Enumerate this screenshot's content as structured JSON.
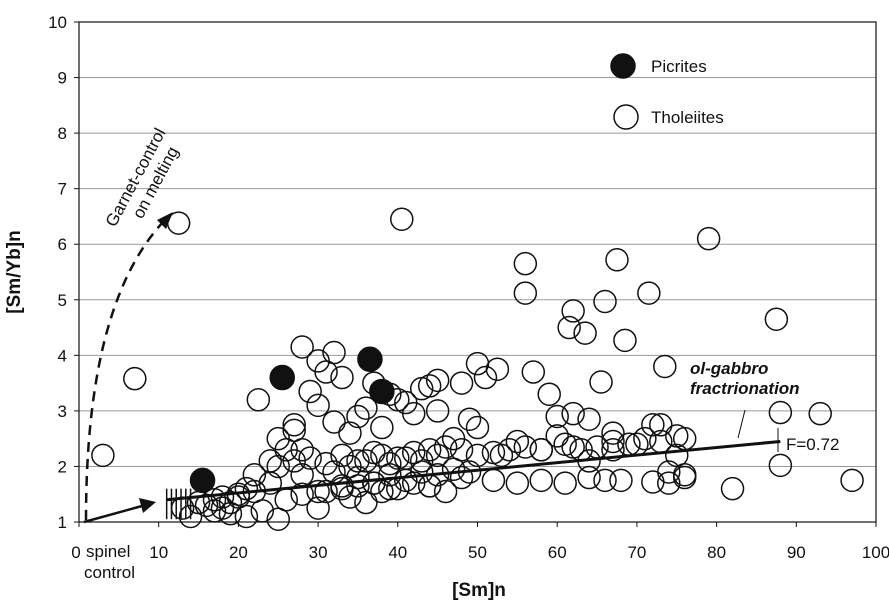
{
  "chart_data": {
    "type": "scatter",
    "xlabel": "[Sm]n",
    "ylabel": "[Sm/Yb]n",
    "xlim": [
      0,
      100
    ],
    "ylim": [
      1,
      10
    ],
    "x_ticks": [
      "0",
      "10",
      "20",
      "30",
      "40",
      "50",
      "60",
      "70",
      "80",
      "90",
      "100"
    ],
    "y_ticks": [
      "1",
      "2",
      "3",
      "4",
      "5",
      "6",
      "7",
      "8",
      "9",
      "10"
    ],
    "grid": "horizontal",
    "legend_placement": "top-right",
    "colors": {
      "picrites": "#111111",
      "tholeiites_fill": "#ffffff",
      "stroke": "#111111",
      "grid": "#999999"
    },
    "legend": [
      {
        "label": "Picrites",
        "symbol": "filled-circle"
      },
      {
        "label": "Tholeiites",
        "symbol": "open-circle"
      }
    ],
    "annotations": {
      "garnet": "Garnet-control on melting",
      "garnet_line1": "Garnet-control",
      "garnet_line2": "on melting",
      "spinel_line1": "spinel",
      "spinel_line2": "control",
      "fractionation_line1": "ol-gabbro",
      "fractionation_line2": "fractrionation",
      "f_label": "F=0.72"
    },
    "fractionation_line": {
      "x": [
        11,
        88
      ],
      "y": [
        1.4,
        2.45
      ]
    },
    "series": [
      {
        "name": "Picrites",
        "x": [
          15.5,
          25.5,
          36.5,
          38
        ],
        "y": [
          1.75,
          3.6,
          3.93,
          3.35
        ]
      },
      {
        "name": "Tholeiites",
        "x": [
          3,
          7,
          12.5,
          40.5,
          56,
          56,
          67.5,
          71.5,
          79,
          87.5,
          63.5,
          66,
          61.5,
          62,
          68.5,
          73.5,
          65.5,
          50,
          52.5,
          48,
          28,
          30,
          32,
          22.5,
          27,
          30,
          25,
          28,
          32,
          34,
          36,
          35,
          38,
          40,
          42,
          44,
          45,
          47,
          49,
          50,
          53,
          55,
          58,
          60,
          62,
          64,
          67,
          70,
          72,
          75,
          76,
          88,
          93,
          97,
          59,
          57,
          51,
          45,
          43,
          41,
          39,
          37,
          33,
          31,
          29,
          27,
          26,
          24,
          22,
          21,
          20,
          19,
          18,
          17,
          16,
          14,
          13,
          24,
          28,
          32,
          34,
          36,
          38,
          40,
          42,
          44,
          46,
          48,
          50,
          52,
          54,
          56,
          58,
          61,
          63,
          65,
          67,
          69,
          71,
          73,
          75,
          30,
          33,
          35,
          37,
          39,
          41,
          43,
          45,
          47,
          49,
          26,
          28,
          31,
          33,
          35,
          37,
          39,
          42,
          44,
          46,
          48,
          52,
          55,
          58,
          61,
          64,
          66,
          68,
          72,
          74,
          76,
          82,
          88,
          25,
          27,
          29,
          31,
          33,
          35,
          37,
          39,
          41,
          43,
          45,
          15,
          18,
          20,
          22,
          23,
          21,
          19,
          17,
          25,
          30,
          34,
          36,
          38,
          40,
          44,
          60,
          62,
          64,
          67,
          73,
          74,
          76
        ],
        "y": [
          2.2,
          3.58,
          6.38,
          6.45,
          5.65,
          5.12,
          5.72,
          5.12,
          6.1,
          4.65,
          4.4,
          4.97,
          4.5,
          4.8,
          4.27,
          3.8,
          3.52,
          3.85,
          3.75,
          3.5,
          4.15,
          3.9,
          4.05,
          3.2,
          2.75,
          3.1,
          2.5,
          2.3,
          2.8,
          2.6,
          3.05,
          2.9,
          2.7,
          3.2,
          2.95,
          3.45,
          3.0,
          2.5,
          2.85,
          2.7,
          2.2,
          2.45,
          2.3,
          2.55,
          2.35,
          2.1,
          2.6,
          2.4,
          2.75,
          2.2,
          2.5,
          2.97,
          2.95,
          1.75,
          3.3,
          3.7,
          3.6,
          3.55,
          3.4,
          3.15,
          3.3,
          3.5,
          3.6,
          3.7,
          3.35,
          2.65,
          2.3,
          2.1,
          1.85,
          1.6,
          1.45,
          1.35,
          1.25,
          1.2,
          1.3,
          1.1,
          1.25,
          1.7,
          1.85,
          1.9,
          2.0,
          2.1,
          2.2,
          2.15,
          2.25,
          2.3,
          2.35,
          2.3,
          2.2,
          2.25,
          2.3,
          2.35,
          2.3,
          2.4,
          2.3,
          2.35,
          2.45,
          2.4,
          2.5,
          2.45,
          2.55,
          1.55,
          1.65,
          1.8,
          1.7,
          1.85,
          1.75,
          1.9,
          1.85,
          1.95,
          1.9,
          1.4,
          1.5,
          1.55,
          1.6,
          1.65,
          1.7,
          1.6,
          1.7,
          1.65,
          1.55,
          1.8,
          1.75,
          1.7,
          1.75,
          1.7,
          1.8,
          1.75,
          1.75,
          1.72,
          1.7,
          1.85,
          1.6,
          2.02,
          2.0,
          2.1,
          2.15,
          2.05,
          2.2,
          2.1,
          2.25,
          2.05,
          2.15,
          2.1,
          2.2,
          1.35,
          1.45,
          1.5,
          1.55,
          1.2,
          1.1,
          1.15,
          1.4,
          1.05,
          1.25,
          1.45,
          1.35,
          1.55,
          1.6,
          1.65,
          2.9,
          2.95,
          2.85,
          2.3,
          2.75,
          1.9,
          1.8
        ]
      }
    ]
  }
}
